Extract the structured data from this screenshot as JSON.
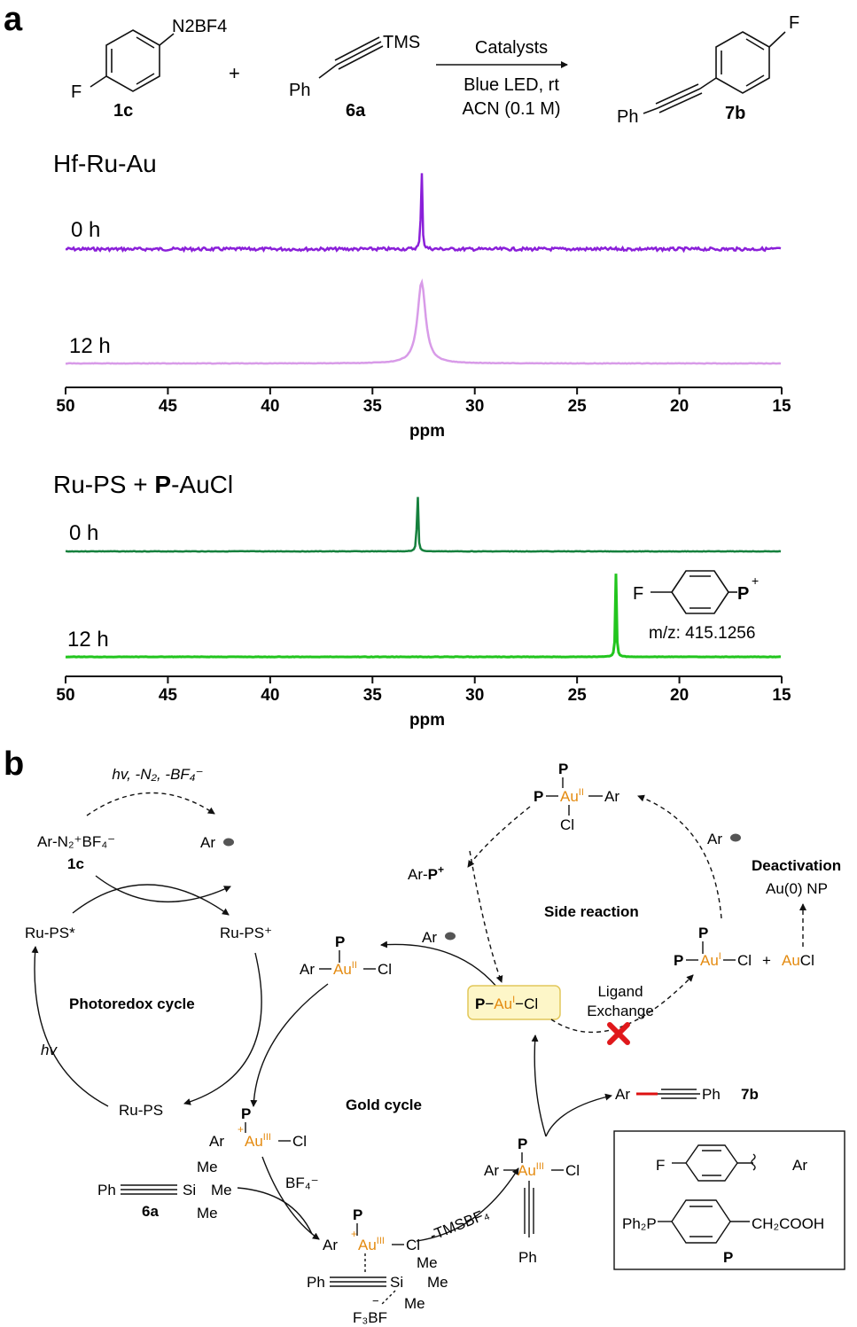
{
  "panels": {
    "a": "a",
    "b": "b"
  },
  "scheme": {
    "reagent_1": {
      "group": "N2BF4",
      "substituent": "F",
      "id": "1c"
    },
    "plus": "+",
    "reagent_2": {
      "group": "TMS",
      "substituent": "Ph",
      "id": "6a"
    },
    "arrow_top": "Catalysts",
    "arrow_bottom_1": "Blue LED, rt",
    "arrow_bottom_2": "ACN (0.1 M)",
    "product": {
      "substituent_top": "F",
      "substituent_left": "Ph",
      "id": "7b"
    }
  },
  "nmr_1": {
    "title": "Hf-Ru-Au",
    "traces": [
      {
        "label": "0 h",
        "color": "#8a1fd9"
      },
      {
        "label": "12 h",
        "color": "#d89be8"
      }
    ],
    "axis_ticks": [
      "50",
      "45",
      "40",
      "35",
      "30",
      "25",
      "20",
      "15"
    ],
    "axis_label": "ppm"
  },
  "nmr_2": {
    "title_prefix": "Ru-PS + ",
    "title_bold": "P",
    "title_suffix": "-AuCl",
    "traces": [
      {
        "label": "0 h",
        "color": "#15803d"
      },
      {
        "label": "12 h",
        "color": "#22c51e"
      }
    ],
    "inset_F": "F",
    "inset_P": "P",
    "inset_charge": "+",
    "inset_mz": "m/z: 415.1256",
    "axis_ticks": [
      "50",
      "45",
      "40",
      "35",
      "30",
      "25",
      "20",
      "15"
    ],
    "axis_label": "ppm"
  },
  "chart_data": [
    {
      "type": "line",
      "title": "Hf-Ru-Au",
      "xlabel": "ppm",
      "xlim": [
        50,
        15
      ],
      "series": [
        {
          "name": "0 h",
          "peaks": [
            {
              "ppm": 32.6,
              "shape": "sharp"
            }
          ]
        },
        {
          "name": "12 h",
          "peaks": [
            {
              "ppm": 32.6,
              "shape": "broad"
            }
          ]
        }
      ]
    },
    {
      "type": "line",
      "title": "Ru-PS + P-AuCl",
      "xlabel": "ppm",
      "xlim": [
        50,
        15
      ],
      "series": [
        {
          "name": "0 h",
          "peaks": [
            {
              "ppm": 32.8,
              "shape": "sharp"
            }
          ]
        },
        {
          "name": "12 h",
          "peaks": [
            {
              "ppm": 23.1,
              "shape": "sharp"
            }
          ]
        }
      ]
    }
  ],
  "mechanism": {
    "hv_reaction": "hv, -N₂, -BF₄⁻",
    "ar_n2": "Ar-N₂⁺BF₄⁻",
    "id_1c": "1c",
    "ar_radical": "Ar",
    "ru_ps_star": "Ru-PS*",
    "ru_ps_plus": "Ru-PS⁺",
    "ru_ps": "Ru-PS",
    "photoredox_label": "Photoredox cycle",
    "hv": "hv",
    "gold_cycle_label": "Gold cycle",
    "side_reaction_label": "Side reaction",
    "deactivation_label": "Deactivation",
    "au0_np": "Au(0) NP",
    "ar_p_plus": "Ar-P⁺",
    "ligand_exchange_1": "Ligand",
    "ligand_exchange_2": "Exchange",
    "box_catalyst": "P−Auᴵ−Cl",
    "aucl": "AuCl",
    "tmsbf4": "-TMSBF₄",
    "bf4_minus": "BF₄⁻",
    "product_ar": "Ar",
    "product_ph": "Ph",
    "product_id": "7b",
    "id_6a": "6a",
    "silane_me": "Me",
    "silane_ph": "Ph",
    "silane_si": "Si",
    "f3bf": "F₃BF",
    "legend_F": "F",
    "legend_Ar": "Ar",
    "legend_ph2p": "Ph₂P",
    "legend_ch2cooh": "CH₂COOH",
    "legend_P": "P",
    "gold_color": "#e48a0f",
    "ru_color": "#1f2a9e"
  }
}
